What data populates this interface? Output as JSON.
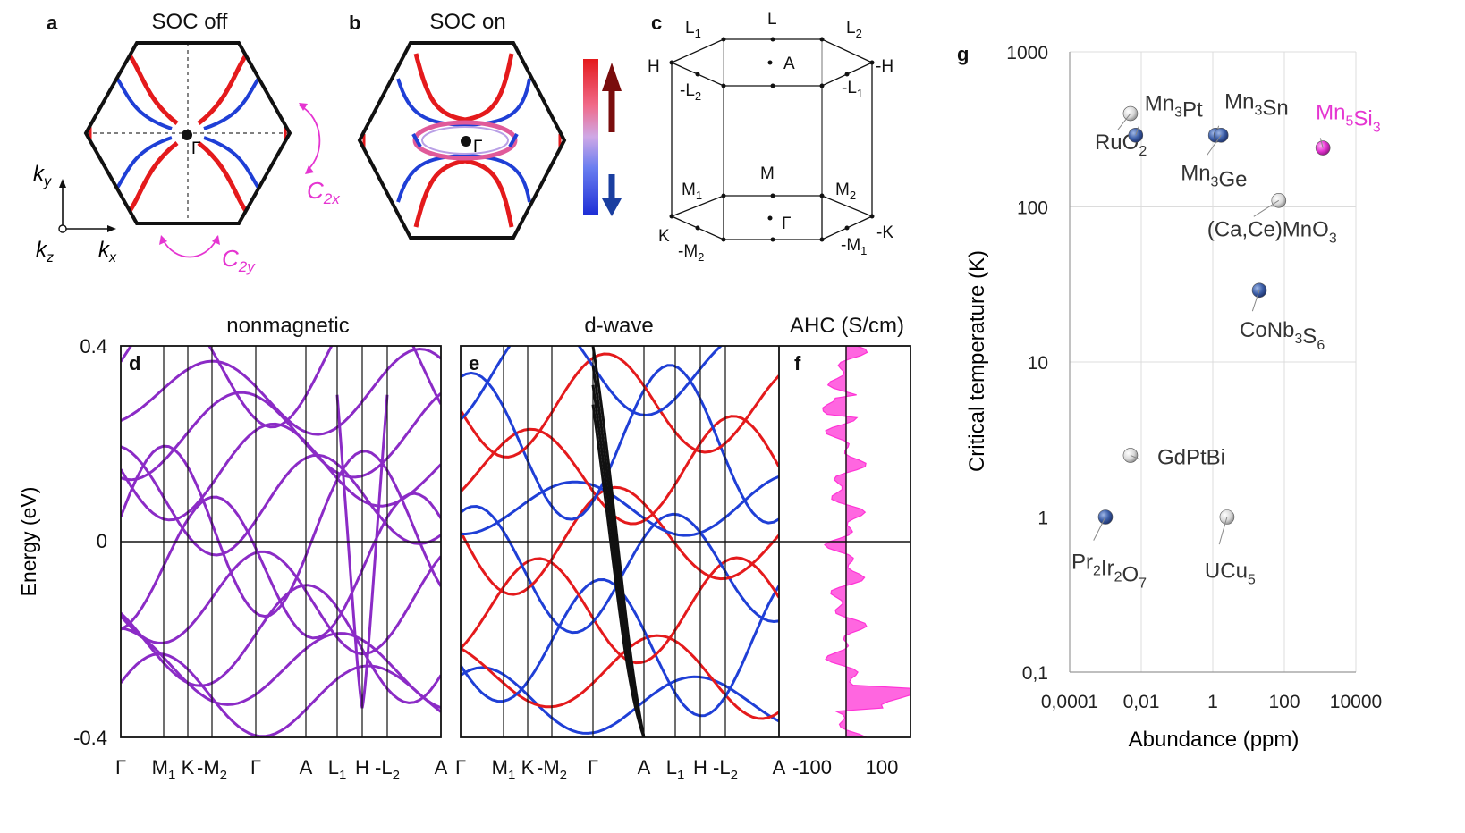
{
  "panel_letters": {
    "a": "a",
    "b": "b",
    "c": "c",
    "d": "d",
    "e": "e",
    "f": "f",
    "g": "g"
  },
  "panel_a": {
    "title": "SOC off",
    "gamma": "Γ",
    "ky": "k",
    "ky_sub": "y",
    "kx": "k",
    "kx_sub": "x",
    "kz": "k",
    "kz_sub": "z",
    "c2x": "C",
    "c2x_sub": "2x",
    "c2y": "C",
    "c2y_sub": "2y"
  },
  "panel_b": {
    "title": "SOC on",
    "gamma": "Γ"
  },
  "panel_c": {
    "points": {
      "L1": "L",
      "L1_sub": "1",
      "L": "L",
      "L2": "L",
      "L2_sub": "2",
      "H": "H",
      "A": "A",
      "mH": "-H",
      "mL2": "-L",
      "mL2_sub": "2",
      "mL1": "-L",
      "mL1_sub": "1",
      "M1": "M",
      "M1_sub": "1",
      "M": "M",
      "M2": "M",
      "M2_sub": "2",
      "G": "Γ",
      "K": "K",
      "mM2": "-M",
      "mM2_sub": "2",
      "mK": "-K",
      "mM1": "-M",
      "mM1_sub": "1"
    }
  },
  "colors": {
    "up": "#e41a1c",
    "down": "#1f3fd6",
    "nonmag": "#8b2bc6",
    "ahc": "#ff33d6",
    "magenta": "#e535d1",
    "black": "#111111"
  },
  "panel_d": {
    "title": "nonmagnetic"
  },
  "panel_e": {
    "title": "d-wave"
  },
  "panel_f": {
    "title": "AHC (S/cm)",
    "ticks": [
      "-100",
      "100"
    ]
  },
  "energy_axis": {
    "label": "Energy (eV)",
    "ticks": [
      "0.4",
      "0",
      "-0.4"
    ]
  },
  "kpath": {
    "labels": [
      "Γ",
      "M",
      "K",
      "-M",
      "Γ",
      "A",
      "L",
      "H",
      "-L",
      "A"
    ],
    "subs": [
      "",
      "1",
      "",
      "2",
      "",
      "",
      "1",
      "",
      "2",
      ""
    ]
  },
  "chart_data": {
    "type": "scatter",
    "title": "",
    "xlabel": "Abundance (ppm)",
    "ylabel": "Critical temperature (K)",
    "xscale": "log",
    "yscale": "log",
    "xlim": [
      0.0001,
      10000
    ],
    "ylim": [
      0.1,
      1000
    ],
    "xticks": [
      "0,0001",
      "0,01",
      "1",
      "100",
      "10000"
    ],
    "yticks": [
      "0,1",
      "1",
      "10",
      "100",
      "1000"
    ],
    "grid": true,
    "points": [
      {
        "name": "RuO",
        "sub": "2",
        "sub2": "",
        "x": 0.005,
        "y": 400,
        "style": "white"
      },
      {
        "name": "Mn",
        "sub": "3",
        "post": "Pt",
        "x": 0.007,
        "y": 290,
        "style": "blue"
      },
      {
        "name": "Mn",
        "sub": "3",
        "post": "Sn",
        "x": 1.2,
        "y": 290,
        "style": "blue"
      },
      {
        "name": "Mn",
        "sub": "3",
        "post": "Ge",
        "x": 1.7,
        "y": 290,
        "style": "blue"
      },
      {
        "name": "Mn",
        "sub": "5",
        "post": "Si",
        "sub2": "3",
        "x": 1200,
        "y": 240,
        "style": "magenta"
      },
      {
        "name": "(Ca,Ce)MnO",
        "sub": "3",
        "x": 70,
        "y": 110,
        "style": "white"
      },
      {
        "name": "CoNb",
        "sub": "3",
        "post": "S",
        "sub2": "6",
        "x": 20,
        "y": 29,
        "style": "blue"
      },
      {
        "name": "GdPtBi",
        "x": 0.005,
        "y": 2.5,
        "style": "white"
      },
      {
        "name": "Pr",
        "sub": "2",
        "post": "Ir",
        "sub2": "2",
        "post2": "O",
        "sub3": "7",
        "x": 0.001,
        "y": 1.0,
        "style": "blue"
      },
      {
        "name": "UCu",
        "sub": "5",
        "x": 2.5,
        "y": 1.0,
        "style": "white"
      }
    ]
  }
}
